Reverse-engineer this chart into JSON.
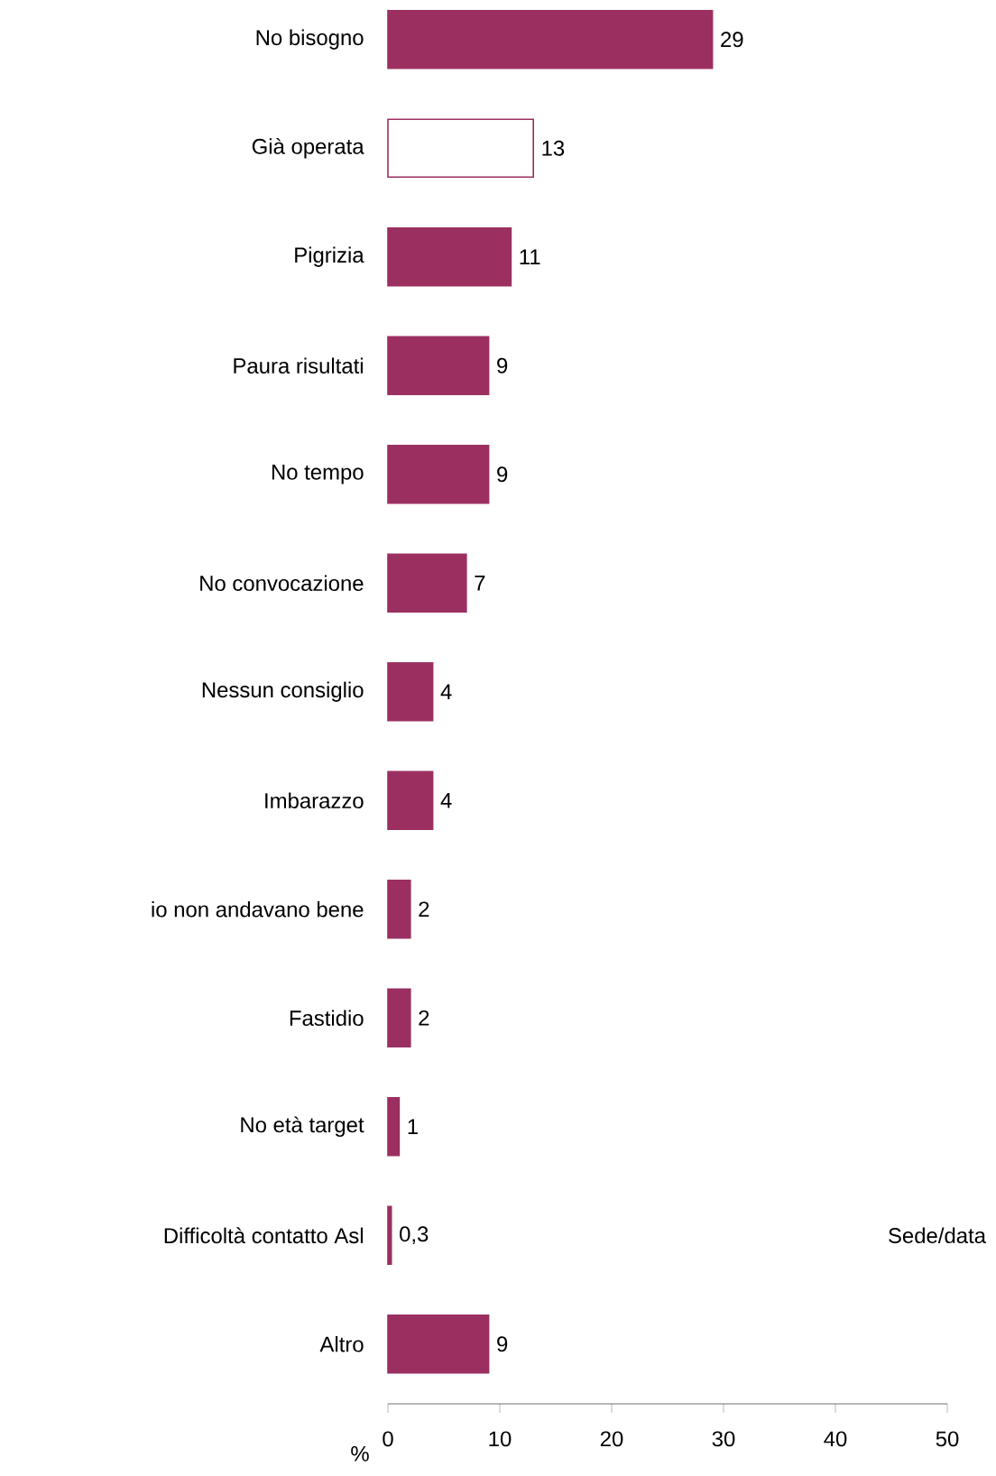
{
  "chart_data": {
    "type": "bar",
    "orientation": "horizontal",
    "xlabel": "%",
    "categories": [
      "No bisogno",
      "Già operata",
      "Pigrizia",
      "Paura risultati",
      "No tempo",
      "No convocazione",
      "Nessun consiglio",
      "Imbarazzo",
      "io non andavano bene",
      "Fastidio",
      "No età target",
      "Difficoltà contatto Asl",
      "Altro"
    ],
    "values": [
      29,
      13,
      11,
      9,
      9,
      7,
      4,
      4,
      2,
      2,
      1,
      0.3,
      9
    ],
    "value_labels": [
      "29",
      "13",
      "11",
      "9",
      "9",
      "7",
      "4",
      "4",
      "2",
      "2",
      "1",
      "0,3",
      "9"
    ],
    "colors": [
      "#9b3060",
      "#ffffff",
      "#9b3060",
      "#9b3060",
      "#9b3060",
      "#9b3060",
      "#9b3060",
      "#9b3060",
      "#9b3060",
      "#9b3060",
      "#9b3060",
      "#9b3060",
      "#9b3060"
    ],
    "xlim": [
      0,
      50
    ],
    "xticks": [
      0,
      10,
      20,
      30,
      40,
      50
    ],
    "annotations": [
      "Sede/data"
    ]
  }
}
